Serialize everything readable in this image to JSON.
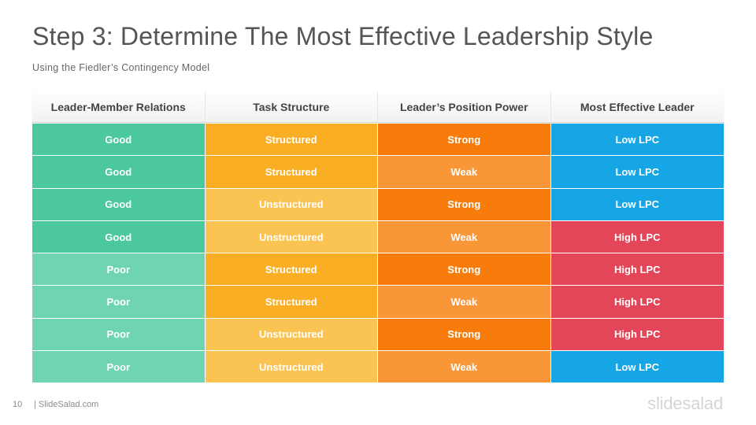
{
  "slide": {
    "title": "Step 3: Determine The Most Effective Leadership Style",
    "subtitle": "Using the Fiedler’s  Contingency  Model"
  },
  "table": {
    "headers": [
      "Leader-Member Relations",
      "Task Structure",
      "Leader’s Position Power",
      "Most Effective Leader"
    ],
    "rows": [
      [
        "Good",
        "Structured",
        "Strong",
        "Low LPC"
      ],
      [
        "Good",
        "Structured",
        "Weak",
        "Low LPC"
      ],
      [
        "Good",
        "Unstructured",
        "Strong",
        "Low LPC"
      ],
      [
        "Good",
        "Unstructured",
        "Weak",
        "High LPC"
      ],
      [
        "Poor",
        "Structured",
        "Strong",
        "High LPC"
      ],
      [
        "Poor",
        "Structured",
        "Weak",
        "High LPC"
      ],
      [
        "Poor",
        "Unstructured",
        "Strong",
        "High LPC"
      ],
      [
        "Poor",
        "Unstructured",
        "Weak",
        "Low LPC"
      ]
    ]
  },
  "colors": {
    "relations": {
      "Good": "#4cc89e",
      "Poor": "#6fd4b0"
    },
    "task": {
      "Structured": "#f9ae24",
      "Unstructured": "#fbc452"
    },
    "power": {
      "Strong": "#f77c0c",
      "Weak": "#f99638"
    },
    "leader": {
      "Low LPC": "#16a6e6",
      "High LPC": "#e24658"
    }
  },
  "footer": {
    "page_number": "10",
    "site": "| SlideSalad.com",
    "logo": "slidesalad"
  }
}
